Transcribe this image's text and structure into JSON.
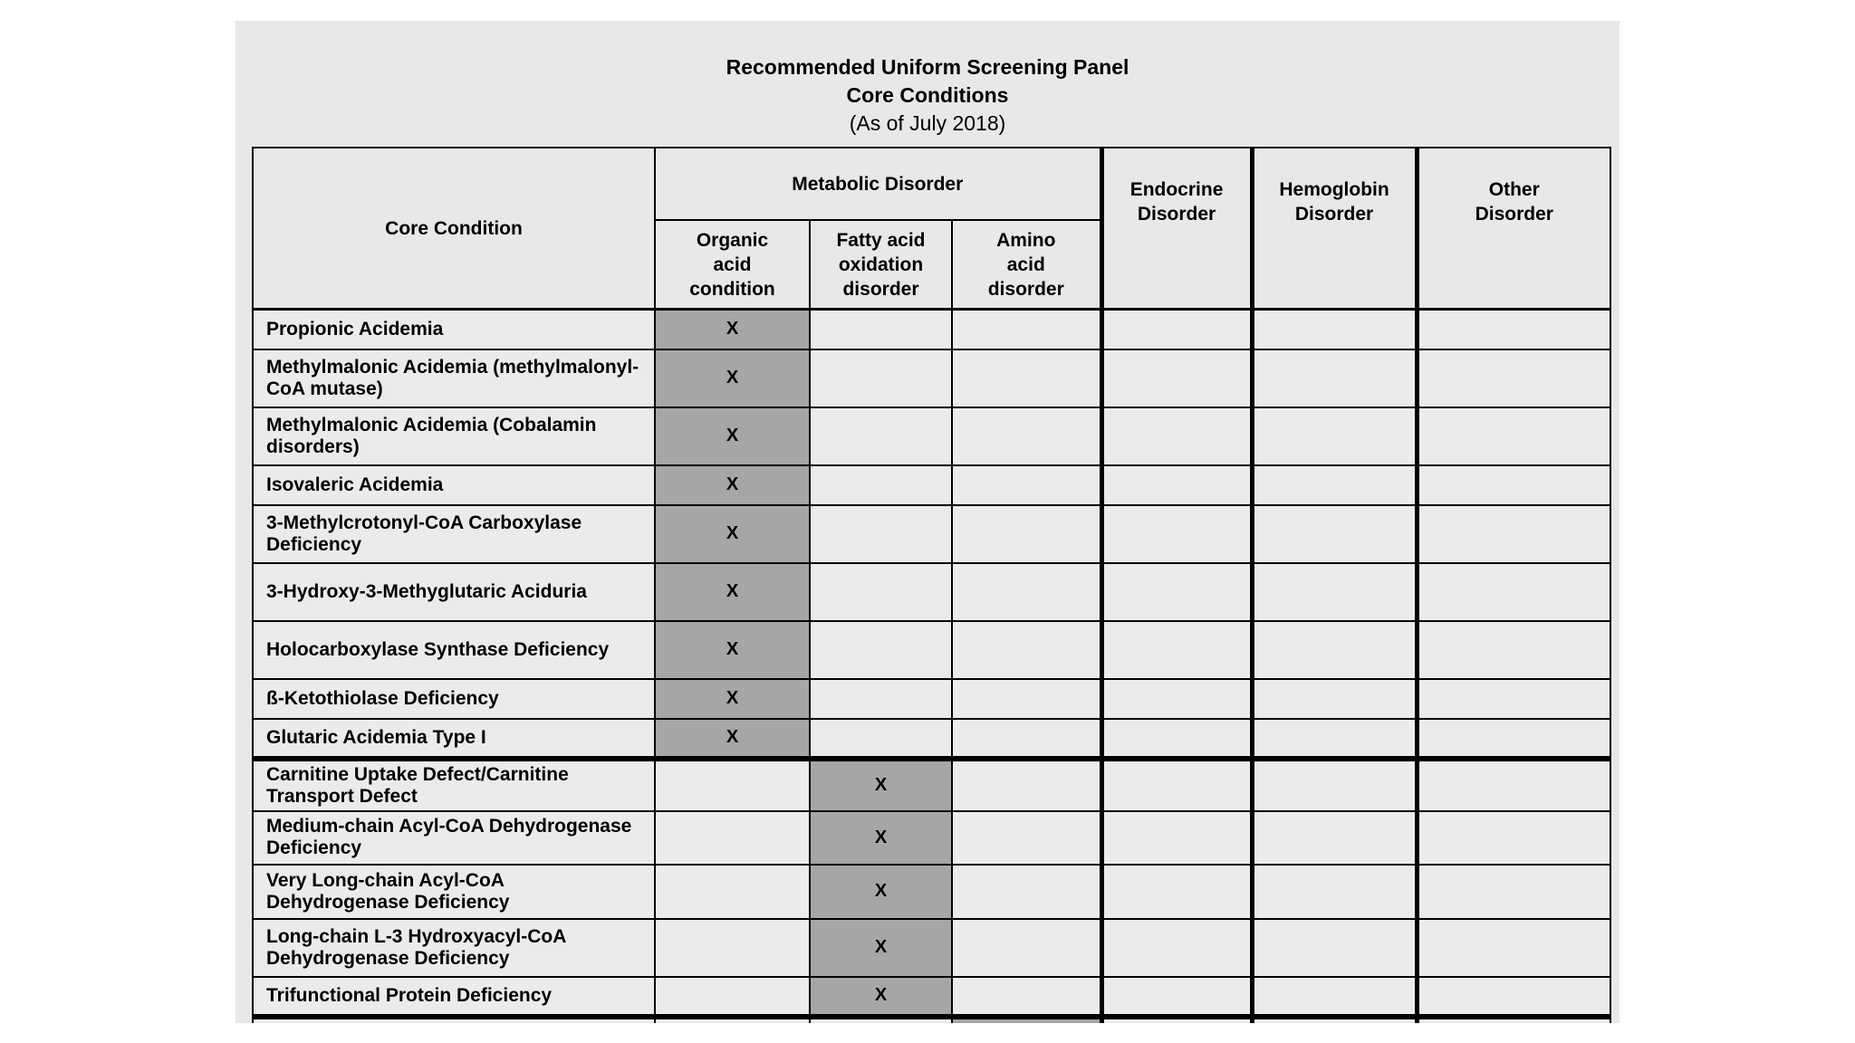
{
  "page": {
    "title_line1": "Recommended Uniform Screening Panel",
    "title_line2": "Core Conditions",
    "title_line3": "(As of July 2018)"
  },
  "colors": {
    "page_background": "#e8e8e8",
    "cell_background": "#ebebeb",
    "shaded_cell": "#a6a6a6",
    "border": "#000000",
    "text": "#000000"
  },
  "table": {
    "header": {
      "core_condition": "Core Condition",
      "metabolic": "Metabolic Disorder",
      "organic": "Organic\nacid\ncondition",
      "fatty": "Fatty acid\noxidation\ndisorder",
      "amino": "Amino\nacid\ndisorder",
      "endocrine": "Endocrine\nDisorder",
      "hemoglobin": "Hemoglobin\nDisorder",
      "other": "Other\nDisorder"
    },
    "mark_symbol": "X",
    "rows": [
      {
        "condition": "Propionic Acidemia",
        "category": "organic",
        "mark": "X"
      },
      {
        "condition": "Methylmalonic Acidemia (methylmalonyl-CoA mutase)",
        "category": "organic",
        "mark": "X"
      },
      {
        "condition": "Methylmalonic Acidemia (Cobalamin disorders)",
        "category": "organic",
        "mark": "X"
      },
      {
        "condition": "Isovaleric Acidemia",
        "category": "organic",
        "mark": "X"
      },
      {
        "condition": "3-Methylcrotonyl-CoA Carboxylase Deficiency",
        "category": "organic",
        "mark": "X"
      },
      {
        "condition": "3-Hydroxy-3-Methyglutaric Aciduria",
        "category": "organic",
        "mark": "X"
      },
      {
        "condition": "Holocarboxylase Synthase Deficiency",
        "category": "organic",
        "mark": "X"
      },
      {
        "condition": "ß-Ketothiolase Deficiency",
        "category": "organic",
        "mark": "X"
      },
      {
        "condition": "Glutaric Acidemia Type I",
        "category": "organic",
        "mark": "X",
        "group_end": true
      },
      {
        "condition": "Carnitine Uptake Defect/Carnitine Transport Defect",
        "category": "fatty",
        "mark": "X"
      },
      {
        "condition": "Medium-chain Acyl-CoA Dehydrogenase Deficiency",
        "category": "fatty",
        "mark": "X"
      },
      {
        "condition": "Very Long-chain Acyl-CoA Dehydrogenase Deficiency",
        "category": "fatty",
        "mark": "X"
      },
      {
        "condition": "Long-chain L-3 Hydroxyacyl-CoA Dehydrogenase Deficiency",
        "category": "fatty",
        "mark": "X"
      },
      {
        "condition": "Trifunctional Protein Deficiency",
        "category": "fatty",
        "mark": "X",
        "group_end": true
      },
      {
        "condition": "",
        "category": "amino",
        "mark": ""
      }
    ]
  }
}
